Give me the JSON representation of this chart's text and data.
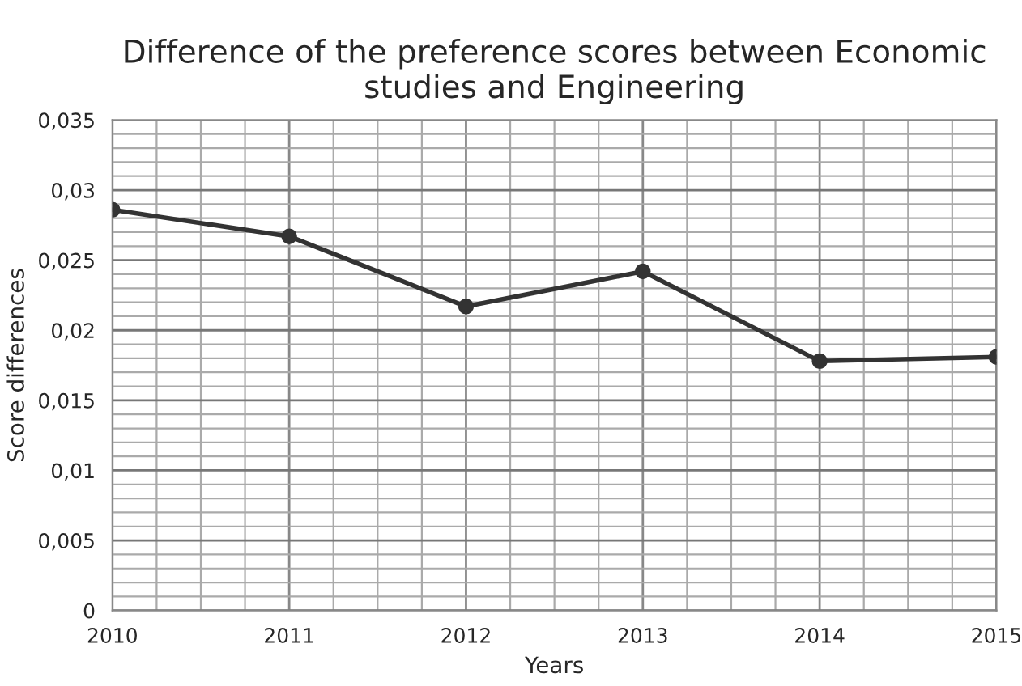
{
  "chart_data": {
    "type": "line",
    "title": "Difference of the preference scores between Economic studies and Engineering",
    "xlabel": "Years",
    "ylabel": "Score differences",
    "x": [
      2010,
      2011,
      2012,
      2013,
      2014,
      2015
    ],
    "series": [
      {
        "color": "#333333",
        "values": [
          0.0286,
          0.0267,
          0.0217,
          0.0242,
          0.0178,
          0.0181
        ]
      }
    ],
    "xlim": [
      2010,
      2015
    ],
    "xticks": [
      2010,
      2011,
      2012,
      2013,
      2014,
      2015
    ],
    "ylim": [
      0,
      0.035
    ],
    "yticks": [
      {
        "value": 0,
        "label": "0"
      },
      {
        "value": 0.005,
        "label": "0,005"
      },
      {
        "value": 0.01,
        "label": "0,01"
      },
      {
        "value": 0.015,
        "label": "0,015"
      },
      {
        "value": 0.02,
        "label": "0,02"
      },
      {
        "value": 0.025,
        "label": "0,025"
      },
      {
        "value": 0.03,
        "label": "0,03"
      },
      {
        "value": 0.035,
        "label": "0,035"
      }
    ],
    "grid": true,
    "marker": "circle",
    "line_style": "solid",
    "legend": false
  }
}
